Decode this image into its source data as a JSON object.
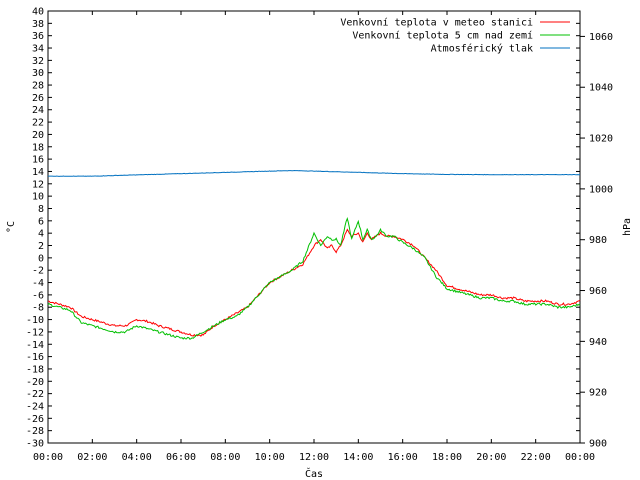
{
  "chart_data": {
    "type": "line",
    "xlabel": "Čas",
    "ylabel": "°C",
    "y2label": "hPa",
    "x_ticks": [
      "00:00",
      "02:00",
      "04:00",
      "06:00",
      "08:00",
      "10:00",
      "12:00",
      "14:00",
      "16:00",
      "18:00",
      "20:00",
      "22:00",
      "00:00"
    ],
    "xlim_hours": [
      0,
      24
    ],
    "ylim": [
      -30,
      40
    ],
    "y_tick_step": 2,
    "y2lim": [
      900,
      1070
    ],
    "y2_ticks": [
      900,
      920,
      940,
      960,
      980,
      1000,
      1020,
      1040,
      1060
    ],
    "grid": false,
    "legend_position": "top-right",
    "series": [
      {
        "name": "Venkovní teplota v meteo stanici",
        "color": "#ff0000",
        "axis": "left",
        "x": [
          0,
          0.5,
          1,
          1.5,
          2,
          2.5,
          3,
          3.5,
          3.8,
          4,
          4.5,
          5,
          5.5,
          6,
          6.5,
          7,
          7.5,
          8,
          8.5,
          9,
          9.5,
          10,
          10.5,
          11,
          11.5,
          12,
          12.3,
          12.6,
          12.8,
          13,
          13.2,
          13.5,
          13.7,
          14,
          14.2,
          14.4,
          14.6,
          14.8,
          15,
          15.3,
          15.6,
          16,
          16.5,
          17,
          17.5,
          18,
          18.5,
          19,
          19.5,
          20,
          20.5,
          21,
          21.5,
          22,
          22.5,
          23,
          23.5,
          24
        ],
        "y": [
          -7,
          -7.5,
          -8,
          -9.5,
          -10,
          -10.5,
          -11,
          -11,
          -10.5,
          -10,
          -10.3,
          -11,
          -11.5,
          -12,
          -12.5,
          -12.5,
          -11,
          -10,
          -9,
          -8,
          -6,
          -4,
          -3,
          -2,
          -1,
          2,
          3,
          1.5,
          2,
          1,
          2,
          4.5,
          3.5,
          4,
          2.5,
          4,
          3,
          3.5,
          4,
          3.5,
          3.5,
          3,
          2,
          0,
          -2,
          -4.5,
          -5,
          -5.5,
          -6,
          -6,
          -6.5,
          -6.5,
          -7,
          -7,
          -7,
          -7.5,
          -7.5,
          -7
        ]
      },
      {
        "name": "Venkovní teplota 5 cm nad zemí",
        "color": "#00c000",
        "axis": "left",
        "x": [
          0,
          0.5,
          1,
          1.5,
          2,
          2.5,
          3,
          3.5,
          4,
          4.5,
          5,
          5.5,
          6,
          6.5,
          7,
          7.5,
          8,
          8.5,
          9,
          9.5,
          10,
          10.5,
          11,
          11.5,
          12,
          12.3,
          12.6,
          12.8,
          13,
          13.2,
          13.5,
          13.7,
          14,
          14.2,
          14.4,
          14.6,
          14.8,
          15,
          15.3,
          15.6,
          16,
          16.5,
          17,
          17.5,
          18,
          18.5,
          19,
          19.5,
          20,
          20.5,
          21,
          21.5,
          22,
          22.5,
          23,
          23.5,
          24
        ],
        "y": [
          -7.5,
          -8,
          -8.5,
          -10.5,
          -11,
          -11.5,
          -12,
          -12,
          -11,
          -11.5,
          -12,
          -12.5,
          -13,
          -13,
          -12,
          -11,
          -10,
          -9.5,
          -8,
          -6,
          -4,
          -3,
          -2,
          -0.5,
          4,
          2,
          3.5,
          3,
          3,
          2,
          6.5,
          3,
          6,
          3,
          4.5,
          3,
          3.5,
          4.5,
          3.5,
          3.5,
          2.5,
          1.5,
          0,
          -3,
          -5,
          -5.5,
          -6,
          -6.5,
          -6.5,
          -7,
          -7,
          -7.5,
          -7.5,
          -7.5,
          -8,
          -8,
          -7.5
        ]
      },
      {
        "name": "Atmosférický tlak",
        "color": "#0070c0",
        "axis": "right",
        "x": [
          0,
          2,
          4,
          6,
          8,
          10,
          11,
          12,
          14,
          16,
          18,
          20,
          22,
          24
        ],
        "y": [
          1005,
          1005,
          1005.5,
          1006,
          1006.5,
          1007,
          1007.2,
          1007,
          1006.5,
          1006,
          1005.7,
          1005.6,
          1005.6,
          1005.6
        ]
      }
    ]
  }
}
